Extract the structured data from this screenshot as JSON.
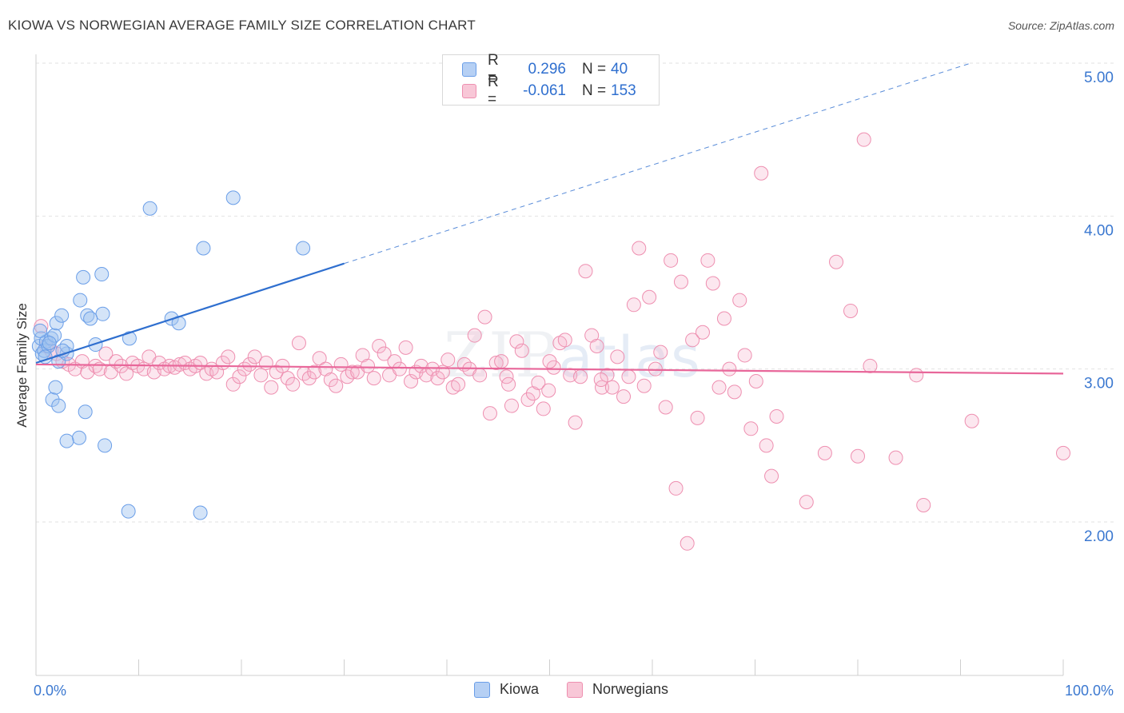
{
  "title": "KIOWA VS NORWEGIAN AVERAGE FAMILY SIZE CORRELATION CHART",
  "source": "Source: ZipAtlas.com",
  "watermark": {
    "zip": "ZIP",
    "atlas": "atlas"
  },
  "legend": {
    "rows": [
      {
        "r_label": "R =",
        "r_value": "0.296",
        "n_label": "N =",
        "n_value": "40",
        "color": "#a9c8f2"
      },
      {
        "r_label": "R =",
        "r_value": "-0.061",
        "n_label": "N =",
        "n_value": "153",
        "color": "#f7bdd0"
      }
    ]
  },
  "bottom_legend": [
    {
      "label": "Kiowa",
      "color": "#a9c8f2"
    },
    {
      "label": "Norwegians",
      "color": "#f7bdd0"
    }
  ],
  "chart_data": {
    "type": "scatter",
    "xlabel": "",
    "ylabel": "Average Family Size",
    "x_tick_labels": [
      "0.0%",
      "100.0%"
    ],
    "y_tick_labels": [
      "2.00",
      "3.00",
      "4.00",
      "5.00"
    ],
    "xlim": [
      0,
      100
    ],
    "ylim": [
      1.0,
      5.1
    ],
    "y_ticks": [
      2.0,
      3.0,
      4.0,
      5.0
    ],
    "grid": "horizontal dashed",
    "colors": {
      "kiowa": "#6a9ee8",
      "kiowa_fill": "rgba(160,195,240,0.45)",
      "kiowa_line": "#2f6fcf",
      "norwegians": "#ee8fb0",
      "norwegians_fill": "rgba(247,180,205,0.40)",
      "norwegians_line": "#e8679a",
      "axis_text": "#3b78d0"
    },
    "series": [
      {
        "name": "Kiowa",
        "trend": {
          "x0": 0,
          "y0": 3.04,
          "x1": 30,
          "y1": 3.69,
          "ext_x": 91,
          "ext_y": 5.0
        },
        "points": [
          [
            0.3,
            3.15
          ],
          [
            0.5,
            3.2
          ],
          [
            0.6,
            3.1
          ],
          [
            0.8,
            3.12
          ],
          [
            1.0,
            3.18
          ],
          [
            1.2,
            3.15
          ],
          [
            1.5,
            3.2
          ],
          [
            1.8,
            3.22
          ],
          [
            2.0,
            3.3
          ],
          [
            2.2,
            3.05
          ],
          [
            1.6,
            2.8
          ],
          [
            1.9,
            2.88
          ],
          [
            2.2,
            2.76
          ],
          [
            2.5,
            3.35
          ],
          [
            3.0,
            3.1
          ],
          [
            4.3,
            3.45
          ],
          [
            5.0,
            3.35
          ],
          [
            6.5,
            3.36
          ],
          [
            4.8,
            2.72
          ],
          [
            4.6,
            3.6
          ],
          [
            5.3,
            3.33
          ],
          [
            6.4,
            3.62
          ],
          [
            5.8,
            3.16
          ],
          [
            4.2,
            2.55
          ],
          [
            6.7,
            2.5
          ],
          [
            3.0,
            2.53
          ],
          [
            9.1,
            3.2
          ],
          [
            9.0,
            2.07
          ],
          [
            11.1,
            4.05
          ],
          [
            13.2,
            3.33
          ],
          [
            13.9,
            3.3
          ],
          [
            16.3,
            3.79
          ],
          [
            16.0,
            2.06
          ],
          [
            19.2,
            4.12
          ],
          [
            26.0,
            3.79
          ],
          [
            3.0,
            3.15
          ],
          [
            1.3,
            3.17
          ],
          [
            0.9,
            3.08
          ],
          [
            2.6,
            3.12
          ],
          [
            0.4,
            3.25
          ]
        ]
      },
      {
        "name": "Norwegians",
        "trend": {
          "x0": 0,
          "y0": 3.03,
          "x1": 100,
          "y1": 2.97
        },
        "points": [
          [
            0.5,
            3.28
          ],
          [
            1.0,
            3.15
          ],
          [
            1.5,
            3.12
          ],
          [
            2.0,
            3.1
          ],
          [
            2.6,
            3.05
          ],
          [
            3.2,
            3.03
          ],
          [
            3.8,
            3.0
          ],
          [
            4.5,
            3.05
          ],
          [
            5.0,
            2.98
          ],
          [
            5.8,
            3.02
          ],
          [
            6.2,
            3.0
          ],
          [
            6.8,
            3.1
          ],
          [
            7.3,
            2.98
          ],
          [
            7.8,
            3.05
          ],
          [
            8.3,
            3.02
          ],
          [
            8.8,
            2.97
          ],
          [
            9.4,
            3.04
          ],
          [
            9.9,
            3.02
          ],
          [
            10.5,
            3.0
          ],
          [
            11.0,
            3.08
          ],
          [
            11.5,
            2.98
          ],
          [
            12.0,
            3.04
          ],
          [
            12.5,
            3.0
          ],
          [
            13.0,
            3.02
          ],
          [
            13.5,
            3.01
          ],
          [
            14.0,
            3.03
          ],
          [
            14.5,
            3.04
          ],
          [
            15.0,
            3.0
          ],
          [
            15.5,
            3.02
          ],
          [
            16.0,
            3.04
          ],
          [
            16.6,
            2.97
          ],
          [
            17.1,
            3.0
          ],
          [
            17.6,
            2.98
          ],
          [
            18.2,
            3.04
          ],
          [
            18.7,
            3.08
          ],
          [
            19.2,
            2.9
          ],
          [
            19.8,
            2.95
          ],
          [
            20.3,
            3.0
          ],
          [
            20.8,
            3.03
          ],
          [
            21.3,
            3.08
          ],
          [
            21.9,
            2.96
          ],
          [
            22.4,
            3.04
          ],
          [
            22.9,
            2.88
          ],
          [
            23.4,
            2.98
          ],
          [
            24.0,
            3.02
          ],
          [
            24.5,
            2.94
          ],
          [
            25.0,
            2.9
          ],
          [
            25.6,
            3.17
          ],
          [
            26.1,
            2.97
          ],
          [
            26.6,
            2.94
          ],
          [
            27.1,
            2.98
          ],
          [
            27.6,
            3.07
          ],
          [
            28.2,
            3.0
          ],
          [
            28.7,
            2.93
          ],
          [
            29.2,
            2.89
          ],
          [
            29.7,
            3.03
          ],
          [
            30.3,
            2.95
          ],
          [
            30.8,
            2.98
          ],
          [
            31.3,
            2.98
          ],
          [
            31.8,
            3.09
          ],
          [
            32.3,
            3.02
          ],
          [
            32.9,
            2.94
          ],
          [
            33.4,
            3.15
          ],
          [
            33.9,
            3.1
          ],
          [
            34.4,
            2.96
          ],
          [
            34.9,
            3.05
          ],
          [
            35.4,
            3.0
          ],
          [
            36.0,
            3.14
          ],
          [
            36.5,
            2.92
          ],
          [
            37.0,
            2.98
          ],
          [
            37.5,
            3.02
          ],
          [
            38.0,
            2.96
          ],
          [
            38.6,
            3.0
          ],
          [
            39.1,
            2.94
          ],
          [
            39.6,
            2.98
          ],
          [
            40.1,
            3.06
          ],
          [
            40.6,
            2.88
          ],
          [
            41.1,
            2.9
          ],
          [
            41.7,
            3.03
          ],
          [
            42.2,
            3.0
          ],
          [
            42.7,
            3.22
          ],
          [
            43.2,
            2.96
          ],
          [
            43.7,
            3.34
          ],
          [
            44.2,
            2.71
          ],
          [
            44.8,
            3.04
          ],
          [
            45.3,
            3.05
          ],
          [
            45.8,
            2.95
          ],
          [
            46.3,
            2.76
          ],
          [
            46.8,
            3.18
          ],
          [
            47.3,
            3.12
          ],
          [
            47.9,
            2.8
          ],
          [
            48.4,
            2.84
          ],
          [
            48.9,
            2.91
          ],
          [
            49.4,
            2.74
          ],
          [
            49.9,
            2.86
          ],
          [
            50.4,
            3.01
          ],
          [
            51.0,
            3.17
          ],
          [
            51.5,
            3.19
          ],
          [
            52.0,
            2.96
          ],
          [
            52.5,
            2.65
          ],
          [
            53.0,
            2.95
          ],
          [
            53.5,
            3.64
          ],
          [
            54.1,
            3.22
          ],
          [
            54.6,
            3.15
          ],
          [
            55.1,
            2.88
          ],
          [
            55.6,
            2.96
          ],
          [
            56.1,
            2.88
          ],
          [
            56.6,
            3.08
          ],
          [
            57.2,
            2.82
          ],
          [
            57.7,
            2.95
          ],
          [
            58.2,
            3.42
          ],
          [
            58.7,
            3.79
          ],
          [
            59.2,
            2.89
          ],
          [
            59.7,
            3.47
          ],
          [
            60.3,
            3.0
          ],
          [
            60.8,
            3.11
          ],
          [
            61.3,
            2.75
          ],
          [
            61.8,
            3.71
          ],
          [
            62.3,
            2.22
          ],
          [
            62.8,
            3.57
          ],
          [
            63.4,
            1.86
          ],
          [
            63.9,
            3.19
          ],
          [
            64.4,
            2.68
          ],
          [
            64.9,
            3.24
          ],
          [
            65.4,
            3.71
          ],
          [
            65.9,
            3.56
          ],
          [
            66.5,
            2.88
          ],
          [
            67.0,
            3.33
          ],
          [
            67.5,
            3.0
          ],
          [
            68.0,
            2.85
          ],
          [
            68.5,
            3.45
          ],
          [
            69.0,
            3.09
          ],
          [
            69.6,
            2.61
          ],
          [
            70.1,
            2.92
          ],
          [
            70.6,
            4.28
          ],
          [
            71.1,
            2.5
          ],
          [
            71.6,
            2.3
          ],
          [
            72.1,
            2.69
          ],
          [
            75.0,
            2.13
          ],
          [
            76.8,
            2.45
          ],
          [
            77.9,
            3.7
          ],
          [
            79.3,
            3.38
          ],
          [
            80.0,
            2.43
          ],
          [
            80.6,
            4.5
          ],
          [
            81.2,
            3.02
          ],
          [
            83.7,
            2.42
          ],
          [
            85.7,
            2.96
          ],
          [
            86.4,
            2.11
          ],
          [
            91.1,
            2.66
          ],
          [
            100.0,
            2.45
          ],
          [
            50.0,
            3.05
          ],
          [
            46.0,
            2.9
          ],
          [
            55.0,
            2.93
          ]
        ]
      }
    ]
  }
}
